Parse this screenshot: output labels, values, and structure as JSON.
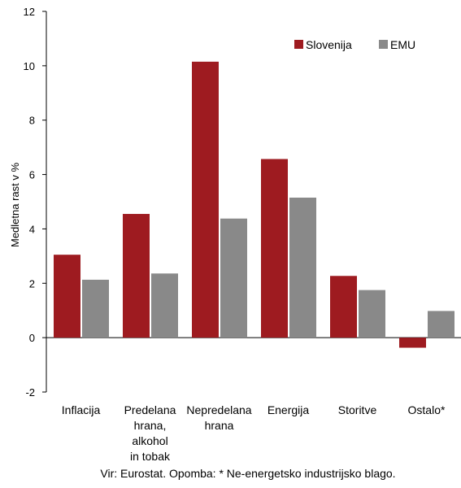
{
  "chart_data": {
    "type": "bar",
    "ylabel": "Medletna rast v %",
    "ylim": [
      -2,
      12
    ],
    "yticks": [
      "-2",
      "0",
      "2",
      "4",
      "6",
      "8",
      "10",
      "12"
    ],
    "categories": [
      [
        "Inflacija"
      ],
      [
        "Predelana",
        "hrana,",
        "alkohol",
        "in tobak"
      ],
      [
        "Nepredelana",
        "hrana"
      ],
      [
        "Energija"
      ],
      [
        "Storitve"
      ],
      [
        "Ostalo*"
      ]
    ],
    "series": [
      {
        "name": "Slovenija",
        "color": "#9e1b20",
        "values": [
          3.05,
          4.55,
          10.15,
          6.57,
          2.27,
          -0.37
        ]
      },
      {
        "name": "EMU",
        "color": "#898989",
        "values": [
          2.13,
          2.36,
          4.38,
          5.15,
          1.75,
          0.98
        ]
      }
    ],
    "legend_position": "top-right",
    "grid": false
  },
  "note": "Vir: Eurostat. Opomba: * Ne-energetsko industrijsko blago."
}
